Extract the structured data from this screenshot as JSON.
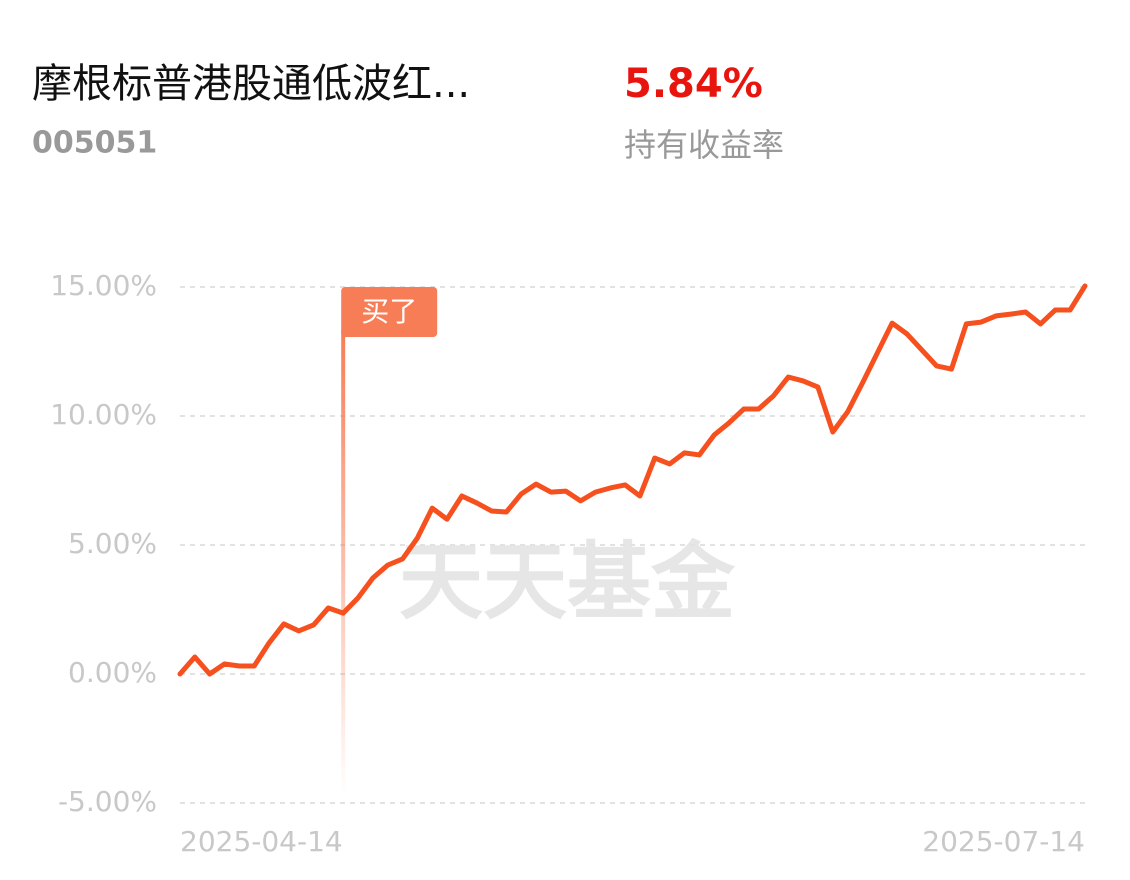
{
  "header": {
    "title": "摩根标普港股通低波红...",
    "code": "005051",
    "return_value": "5.84%",
    "return_label": "持有收益率"
  },
  "watermark": "天天基金",
  "chart_data": {
    "type": "line",
    "categories": [
      "2025-04-14",
      null,
      null,
      null,
      null,
      null,
      null,
      null,
      null,
      null,
      null,
      null,
      null,
      null,
      null,
      null,
      null,
      null,
      null,
      null,
      null,
      null,
      null,
      null,
      null,
      null,
      null,
      null,
      null,
      null,
      null,
      null,
      null,
      null,
      null,
      null,
      null,
      null,
      null,
      null,
      null,
      null,
      null,
      null,
      null,
      null,
      null,
      null,
      null,
      null,
      null,
      null,
      null,
      null,
      null,
      null,
      null,
      null,
      null,
      null,
      null,
      "2025-07-14"
    ],
    "series": [
      {
        "color": "#f5501e",
        "values": [
          0,
          0.66,
          0,
          0.39,
          0.31,
          0.31,
          1.2,
          1.94,
          1.67,
          1.9,
          2.56,
          2.36,
          2.95,
          3.72,
          4.22,
          4.46,
          5.27,
          6.43,
          6.0,
          6.9,
          6.63,
          6.32,
          6.28,
          6.98,
          7.36,
          7.05,
          7.09,
          6.71,
          7.05,
          7.21,
          7.33,
          6.9,
          8.37,
          8.14,
          8.57,
          8.49,
          9.26,
          9.73,
          10.27,
          10.27,
          10.78,
          11.51,
          11.36,
          11.12,
          9.38,
          10.16,
          11.28,
          12.44,
          13.6,
          13.18,
          12.56,
          11.94,
          11.82,
          13.57,
          13.64,
          13.88,
          13.95,
          14.03,
          13.57,
          14.11,
          14.11,
          15.04
        ]
      }
    ],
    "ylim": [
      -5,
      15
    ],
    "yticks": [
      {
        "value": -5,
        "label": "-5.00%"
      },
      {
        "value": 0,
        "label": "0.00%"
      },
      {
        "value": 5,
        "label": "5.00%"
      },
      {
        "value": 10,
        "label": "10.00%"
      },
      {
        "value": 15,
        "label": "15.00%"
      }
    ],
    "grid": true,
    "annotations": [
      {
        "text": "买了",
        "index": 11,
        "color": "#f77d56"
      }
    ]
  }
}
